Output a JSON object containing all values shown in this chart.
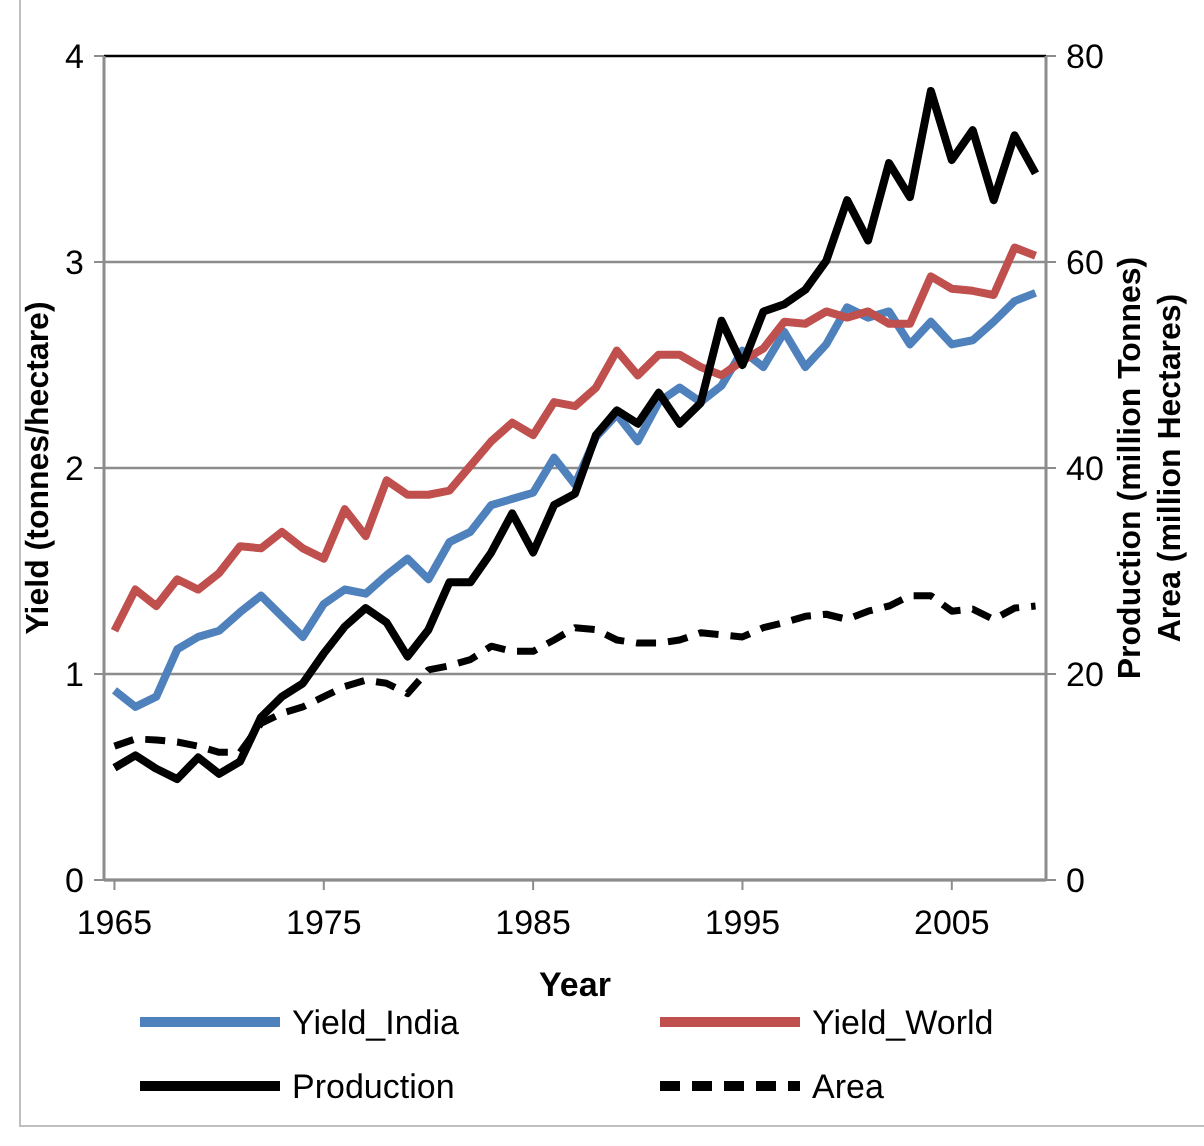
{
  "chart_data": {
    "type": "line",
    "xlabel": "Year",
    "ylabel": "Yield (tonnes/hectare)",
    "y2label": "Production (million Tonnes)\nArea (million Hectares)",
    "x": [
      1965,
      1966,
      1967,
      1968,
      1969,
      1970,
      1971,
      1972,
      1973,
      1974,
      1975,
      1976,
      1977,
      1978,
      1979,
      1980,
      1981,
      1982,
      1983,
      1984,
      1985,
      1986,
      1987,
      1988,
      1989,
      1990,
      1991,
      1992,
      1993,
      1994,
      1995,
      1996,
      1997,
      1998,
      1999,
      2000,
      2001,
      2002,
      2003,
      2004,
      2005,
      2006,
      2007,
      2008,
      2009
    ],
    "xlim": [
      1964.5,
      2009.5
    ],
    "xticks": [
      1965,
      1975,
      1985,
      1995,
      2005
    ],
    "ylim": [
      0,
      4
    ],
    "yticks": [
      0,
      1,
      2,
      3,
      4
    ],
    "y2lim": [
      0,
      80
    ],
    "y2ticks": [
      0,
      20,
      40,
      60,
      80
    ],
    "grid": "y",
    "legend": "bottom",
    "series": [
      {
        "name": "Yield_India",
        "color": "#4f81bd",
        "values": [
          0.92,
          0.84,
          0.89,
          1.12,
          1.18,
          1.21,
          1.3,
          1.38,
          1.28,
          1.18,
          1.34,
          1.41,
          1.39,
          1.48,
          1.56,
          1.46,
          1.64,
          1.69,
          1.82,
          1.85,
          1.88,
          2.05,
          1.92,
          2.15,
          2.26,
          2.13,
          2.32,
          2.39,
          2.32,
          2.4,
          2.57,
          2.49,
          2.66,
          2.49,
          2.6,
          2.78,
          2.73,
          2.76,
          2.6,
          2.71,
          2.6,
          2.62,
          2.71,
          2.81,
          2.85
        ]
      },
      {
        "name": "Yield_World",
        "color": "#c0504d",
        "values": [
          1.21,
          1.41,
          1.33,
          1.46,
          1.41,
          1.49,
          1.62,
          1.61,
          1.69,
          1.61,
          1.56,
          1.8,
          1.67,
          1.94,
          1.87,
          1.87,
          1.89,
          2.01,
          2.13,
          2.22,
          2.16,
          2.32,
          2.3,
          2.39,
          2.57,
          2.45,
          2.55,
          2.55,
          2.49,
          2.45,
          2.52,
          2.58,
          2.71,
          2.7,
          2.76,
          2.73,
          2.76,
          2.7,
          2.7,
          2.93,
          2.87,
          2.86,
          2.84,
          3.07,
          3.03
        ]
      },
      {
        "name": "Production",
        "color": "#000000",
        "axis": "y2",
        "values": [
          10.9,
          12.1,
          10.8,
          9.8,
          11.9,
          10.3,
          11.5,
          15.8,
          17.8,
          19.1,
          22,
          24.6,
          26.4,
          25,
          21.7,
          24.3,
          28.9,
          28.9,
          31.8,
          35.6,
          31.8,
          36.4,
          37.5,
          43.2,
          45.6,
          44.3,
          47.3,
          44.3,
          46.3,
          54.3,
          50,
          55.2,
          55.9,
          57.3,
          60.1,
          66,
          62.1,
          69.6,
          66.3,
          76.6,
          69.9,
          72.8,
          66,
          72.3,
          68.6
        ]
      },
      {
        "name": "Area",
        "color": "#000000",
        "axis": "y2",
        "line_style": "dashed",
        "values": [
          13,
          13.7,
          13.6,
          13.4,
          13,
          12.4,
          12.4,
          15.2,
          16.2,
          16.8,
          17.8,
          18.8,
          19.4,
          19.1,
          18.1,
          20.4,
          20.8,
          21.4,
          22.7,
          22.2,
          22.2,
          23.3,
          24.5,
          24.3,
          23.3,
          23,
          23,
          23.3,
          24,
          23.8,
          23.6,
          24.5,
          25,
          25.6,
          25.8,
          25.3,
          26.1,
          26.6,
          27.6,
          27.6,
          26.1,
          26.3,
          25.3,
          26.4,
          26.6
        ]
      }
    ]
  }
}
